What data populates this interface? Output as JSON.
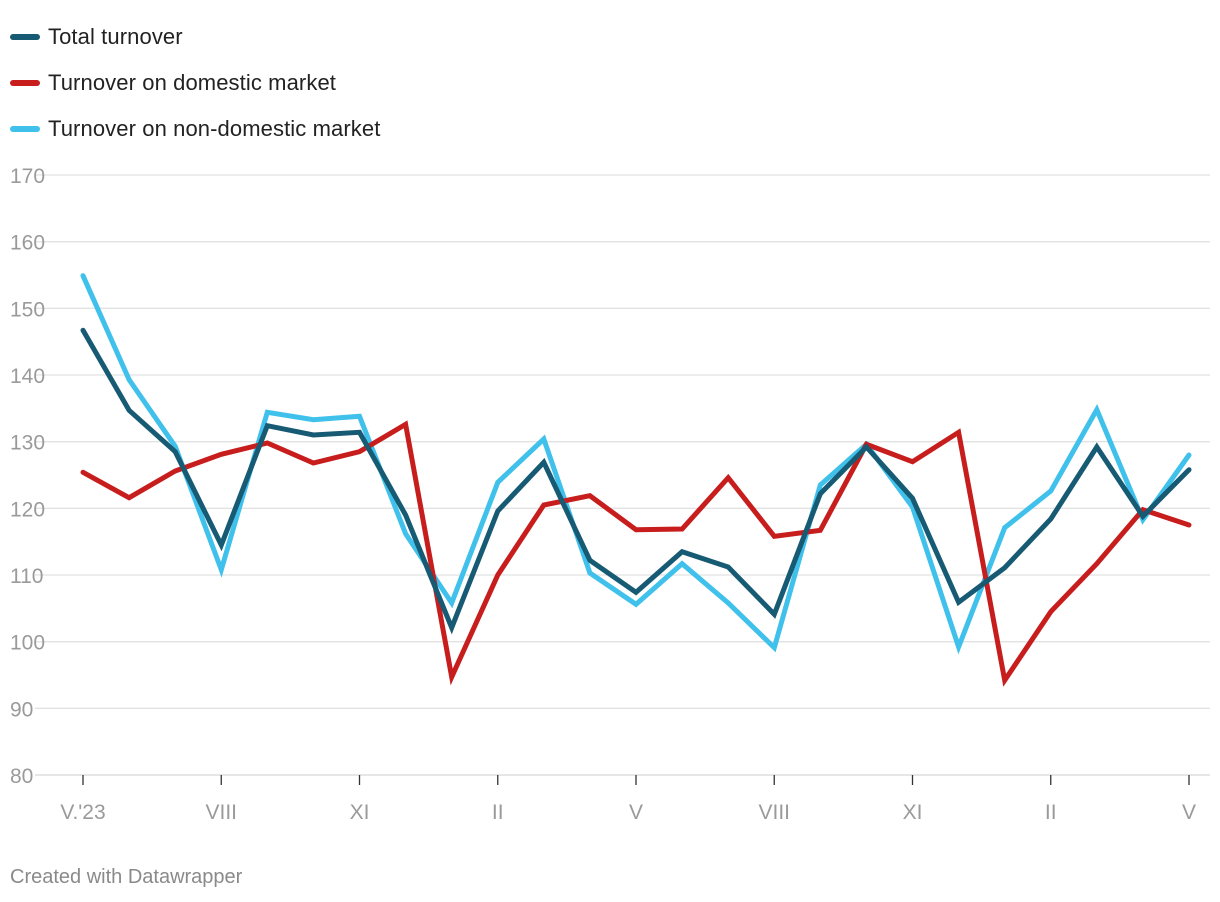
{
  "legend": [
    {
      "label": "Total turnover",
      "color": "#175a73"
    },
    {
      "label": "Turnover on domestic market",
      "color": "#c71e1d"
    },
    {
      "label": "Turnover on non-domestic market",
      "color": "#3fc1ec"
    }
  ],
  "footer": {
    "credit": "Created with Datawrapper"
  },
  "chart_data": {
    "type": "line",
    "title": "",
    "xlabel": "",
    "ylabel": "",
    "ylim": [
      80,
      170
    ],
    "yticks": [
      80,
      90,
      100,
      110,
      120,
      130,
      140,
      150,
      160,
      170
    ],
    "grid": true,
    "legend_position": "top-left",
    "x": [
      "V.'23",
      "VI",
      "VII",
      "VIII",
      "IX",
      "X",
      "XI",
      "XII",
      "I",
      "II",
      "III",
      "IV",
      "V",
      "VI",
      "VII",
      "VIII",
      "IX",
      "X",
      "XI",
      "XII",
      "I",
      "II",
      "III",
      "IV",
      "V"
    ],
    "xtick_labels": [
      {
        "index": 0,
        "label": "V.'23"
      },
      {
        "index": 3,
        "label": "VIII"
      },
      {
        "index": 6,
        "label": "XI"
      },
      {
        "index": 9,
        "label": "II"
      },
      {
        "index": 12,
        "label": "V"
      },
      {
        "index": 15,
        "label": "VIII"
      },
      {
        "index": 18,
        "label": "XI"
      },
      {
        "index": 21,
        "label": "II"
      },
      {
        "index": 24,
        "label": "V"
      }
    ],
    "series": [
      {
        "name": "Total turnover",
        "color": "#175a73",
        "values": [
          146.7,
          134.7,
          128.5,
          114.5,
          132.4,
          131.0,
          131.4,
          119.0,
          102.1,
          119.6,
          126.9,
          112.2,
          107.4,
          113.5,
          111.2,
          104.1,
          122.2,
          129.2,
          121.5,
          105.9,
          111.1,
          118.4,
          129.2,
          118.8,
          125.8
        ]
      },
      {
        "name": "Turnover on domestic market",
        "color": "#c71e1d",
        "values": [
          125.4,
          121.6,
          125.6,
          128.1,
          129.8,
          126.8,
          128.5,
          132.6,
          94.7,
          110.0,
          120.5,
          121.9,
          116.8,
          116.9,
          124.6,
          115.8,
          116.7,
          129.6,
          127.0,
          131.4,
          94.2,
          104.5,
          111.7,
          119.8,
          117.5
        ]
      },
      {
        "name": "Turnover on non-domestic market",
        "color": "#3fc1ec",
        "values": [
          154.9,
          139.3,
          129.3,
          110.8,
          134.4,
          133.3,
          133.8,
          116.2,
          105.8,
          123.9,
          130.4,
          110.3,
          105.6,
          111.7,
          105.8,
          99.1,
          123.5,
          129.6,
          120.2,
          99.2,
          117.1,
          122.6,
          134.8,
          118.3,
          128.0
        ]
      }
    ]
  },
  "colors": {
    "grid": "#e2e2e2",
    "tick_text": "#9a9a9a",
    "axis_tick": "#333333"
  }
}
